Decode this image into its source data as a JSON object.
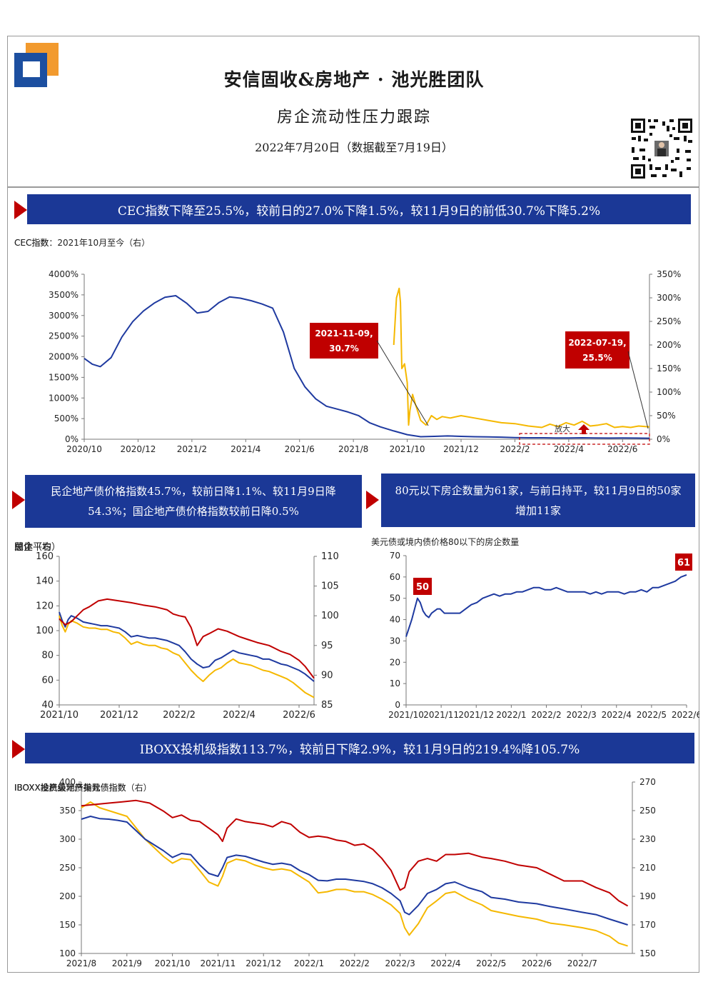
{
  "header": {
    "title": "安信固收&房地产 · 池光胜团队",
    "subtitle": "房企流动性压力跟踪",
    "date": "2022年7月20日（数据截至7月19日）"
  },
  "banners": {
    "b1": "CEC指数下降至25.5%，较前日的27.0%下降1.5%，较11月9日的前低30.7%下降5.2%",
    "b2": "民企地产债价格指数45.7%，较前日降1.1%、较11月9日降54.3%；国企地产债价格指数较前日降0.5%",
    "b3": "80元以下房企数量为61家，与前日持平，较11月9日的50家增加11家",
    "b4": "IBOXX投机级指数113.7%，较前日下降2.9%，较11月9日的219.4%降105.7%"
  },
  "colors": {
    "navy": "#1b3896",
    "red": "#c00000",
    "gold": "#f5b800",
    "blue": "#1f3aa0"
  },
  "chart_data": [
    {
      "id": "cec",
      "type": "line",
      "legend": [
        "CEC指数",
        "CEC指数：2021年10月至今（右）"
      ],
      "y_ticks": [
        "4000%",
        "3500%",
        "3000%",
        "2500%",
        "2000%",
        "1500%",
        "1000%",
        "500%",
        "0%"
      ],
      "y2_ticks": [
        "350%",
        "300%",
        "250%",
        "200%",
        "150%",
        "100%",
        "50%",
        "0%"
      ],
      "x_ticks": [
        "2020/10",
        "2020/12",
        "2021/2",
        "2021/4",
        "2021/6",
        "2021/8",
        "2021/10",
        "2021/12",
        "2022/2",
        "2022/4",
        "2022/6"
      ],
      "ylim": [
        0,
        4000
      ],
      "y2lim": [
        0,
        350
      ],
      "series": [
        {
          "name": "CEC指数",
          "axis": "left",
          "x": [
            0,
            0.3,
            0.6,
            1.0,
            1.4,
            1.8,
            2.2,
            2.6,
            3.0,
            3.4,
            3.8,
            4.2,
            4.6,
            5.0,
            5.4,
            5.8,
            6.2,
            6.6,
            7.0,
            7.4,
            7.8,
            8.2,
            8.6,
            9.0,
            9.4,
            9.8,
            10.2,
            10.6,
            11.0,
            11.5,
            12.0,
            12.5,
            13.0,
            13.5,
            14.0,
            14.5,
            15.0,
            15.5,
            16.0,
            16.5,
            17.0,
            17.5,
            18.0,
            18.5,
            19.0,
            19.5,
            20.0,
            20.5,
            21.0
          ],
          "y": [
            1960,
            1820,
            1760,
            1980,
            2480,
            2850,
            3110,
            3300,
            3440,
            3480,
            3300,
            3060,
            3100,
            3310,
            3450,
            3420,
            3360,
            3280,
            3180,
            2600,
            1720,
            1270,
            980,
            800,
            730,
            660,
            570,
            400,
            300,
            200,
            110,
            60,
            70,
            80,
            70,
            60,
            55,
            50,
            40,
            35,
            35,
            30,
            30,
            35,
            30,
            28,
            30,
            27,
            25
          ]
        },
        {
          "name": "CEC指数：2021年10月至今（右）",
          "axis": "right",
          "x": [
            11.5,
            11.6,
            11.7,
            11.75,
            11.8,
            11.9,
            12.0,
            12.05,
            12.1,
            12.2,
            12.3,
            12.5,
            12.7,
            12.9,
            13.1,
            13.3,
            13.6,
            14.0,
            14.5,
            15.0,
            15.5,
            16.0,
            16.5,
            17.0,
            17.3,
            17.6,
            17.9,
            18.2,
            18.5,
            18.8,
            19.1,
            19.4,
            19.7,
            20.0,
            20.3,
            20.6,
            21.0
          ],
          "y": [
            200,
            300,
            320,
            290,
            150,
            160,
            120,
            30,
            60,
            95,
            75,
            40,
            30,
            50,
            42,
            48,
            45,
            50,
            45,
            40,
            35,
            33,
            28,
            25,
            32,
            27,
            35,
            30,
            38,
            28,
            30,
            33,
            25,
            27,
            25,
            28,
            26
          ]
        }
      ],
      "annotations": [
        {
          "label": "2021-11-09, 30.7%"
        },
        {
          "label": "2022-07-19, 25.5%"
        },
        {
          "label": "放大"
        }
      ]
    },
    {
      "id": "bond_price",
      "type": "line",
      "legend": [
        "总体平均",
        "民企",
        "国企（右）"
      ],
      "y_ticks": [
        "160",
        "140",
        "120",
        "100",
        "80",
        "60",
        "40"
      ],
      "y2_ticks": [
        "110",
        "105",
        "100",
        "95",
        "90",
        "85"
      ],
      "x_ticks": [
        "2021/10",
        "2021/12",
        "2022/2",
        "2022/4",
        "2022/6"
      ],
      "ylim": [
        40,
        160
      ],
      "y2lim": [
        85,
        110
      ],
      "series": [
        {
          "name": "总体平均",
          "axis": "left",
          "x": [
            0,
            0.1,
            0.2,
            0.3,
            0.4,
            0.6,
            0.8,
            1.0,
            1.2,
            1.4,
            1.6,
            1.8,
            2.0,
            2.2,
            2.4,
            2.6,
            2.8,
            3.0,
            3.2,
            3.4,
            3.6,
            3.8,
            4.0,
            4.2,
            4.4,
            4.6,
            4.8,
            5.0,
            5.2,
            5.4,
            5.6,
            5.8,
            6.0,
            6.2,
            6.4,
            6.6,
            6.8,
            7.0,
            7.2,
            7.4,
            7.6,
            7.8,
            8.0,
            8.2,
            8.5
          ],
          "y": [
            115,
            108,
            103,
            109,
            112,
            110,
            107,
            106,
            105,
            104,
            104,
            103,
            102,
            99,
            95,
            96,
            95,
            94,
            94,
            93,
            92,
            90,
            88,
            83,
            77,
            73,
            70,
            71,
            76,
            78,
            81,
            84,
            82,
            81,
            80,
            79,
            77,
            77,
            75,
            73,
            72,
            70,
            68,
            65,
            59
          ]
        },
        {
          "name": "民企",
          "axis": "left",
          "x": [
            0,
            0.1,
            0.2,
            0.3,
            0.4,
            0.6,
            0.8,
            1.0,
            1.2,
            1.4,
            1.6,
            1.8,
            2.0,
            2.2,
            2.4,
            2.6,
            2.8,
            3.0,
            3.2,
            3.4,
            3.6,
            3.8,
            4.0,
            4.2,
            4.4,
            4.6,
            4.8,
            5.0,
            5.2,
            5.4,
            5.6,
            5.8,
            6.0,
            6.2,
            6.4,
            6.6,
            6.8,
            7.0,
            7.2,
            7.4,
            7.6,
            7.8,
            8.0,
            8.2,
            8.5
          ],
          "y": [
            112,
            104,
            99,
            105,
            108,
            106,
            103,
            102,
            102,
            101,
            101,
            99,
            98,
            94,
            89,
            91,
            89,
            88,
            88,
            86,
            85,
            82,
            80,
            74,
            68,
            63,
            59,
            64,
            68,
            70,
            74,
            77,
            74,
            73,
            72,
            70,
            68,
            67,
            65,
            63,
            61,
            58,
            54,
            50,
            46
          ]
        },
        {
          "name": "国企（右）",
          "axis": "right",
          "x": [
            0,
            0.2,
            0.4,
            0.6,
            0.8,
            1.0,
            1.3,
            1.6,
            2.0,
            2.4,
            2.8,
            3.2,
            3.6,
            3.8,
            4.0,
            4.2,
            4.4,
            4.6,
            4.8,
            5.0,
            5.3,
            5.6,
            6.0,
            6.3,
            6.6,
            7.0,
            7.4,
            7.7,
            8.0,
            8.2,
            8.5
          ],
          "y": [
            99.5,
            98.5,
            99,
            100,
            101,
            101.5,
            102.5,
            102.8,
            102.5,
            102.2,
            101.8,
            101.5,
            101,
            100.3,
            100,
            99.8,
            98,
            95,
            96.5,
            97,
            97.8,
            97.4,
            96.5,
            96,
            95.5,
            95,
            94,
            93.5,
            92.5,
            91.5,
            89.5
          ]
        }
      ]
    },
    {
      "id": "below80",
      "type": "line",
      "legend": [
        "美元债或境内债价格80以下的房企数量"
      ],
      "y_ticks": [
        "70",
        "60",
        "50",
        "40",
        "30",
        "20",
        "10",
        "0"
      ],
      "x_ticks": [
        "2021/10",
        "2021/11",
        "2021/12",
        "2022/1",
        "2022/2",
        "2022/3",
        "2022/4",
        "2022/5",
        "2022/6"
      ],
      "ylim": [
        0,
        70
      ],
      "series": [
        {
          "name": "美元债或境内债价格80以下的房企数量",
          "x": [
            0,
            0.1,
            0.2,
            0.3,
            0.4,
            0.5,
            0.6,
            0.7,
            0.8,
            0.9,
            1.0,
            1.1,
            1.2,
            1.35,
            1.5,
            1.7,
            1.9,
            2.0,
            2.1,
            2.3,
            2.5,
            2.7,
            2.9,
            3.1,
            3.3,
            3.5,
            3.7,
            3.9,
            4.1,
            4.3,
            4.5,
            4.7,
            4.9,
            5.1,
            5.3,
            5.5,
            5.7,
            5.9,
            6.1,
            6.3,
            6.5,
            6.7,
            6.9,
            7.1,
            7.3,
            7.5,
            7.7,
            7.9,
            8.1,
            8.3,
            8.5,
            8.7,
            8.9,
            9.1,
            9.3,
            9.5,
            9.7,
            9.9
          ],
          "y": [
            32,
            36,
            40,
            45,
            50,
            48,
            44,
            42,
            41,
            43,
            44,
            45,
            45,
            43,
            43,
            43,
            43,
            44,
            45,
            47,
            48,
            50,
            51,
            52,
            51,
            52,
            52,
            53,
            53,
            54,
            55,
            55,
            54,
            54,
            55,
            54,
            53,
            53,
            53,
            53,
            52,
            53,
            52,
            53,
            53,
            53,
            52,
            53,
            53,
            54,
            53,
            55,
            55,
            56,
            57,
            58,
            60,
            61
          ]
        }
      ],
      "annotations": [
        {
          "label": "50"
        },
        {
          "label": "61"
        }
      ]
    },
    {
      "id": "iboxx",
      "type": "line",
      "legend": [
        "IBOXX投机级地产美元债指数",
        "IBOXX地产美元债指数",
        "IBOXX投资级地产美元债指数（右）"
      ],
      "y_ticks": [
        "400",
        "350",
        "300",
        "250",
        "200",
        "150",
        "100"
      ],
      "y2_ticks": [
        "270",
        "250",
        "230",
        "210",
        "190",
        "170",
        "150"
      ],
      "x_ticks": [
        "2021/8",
        "2021/9",
        "2021/10",
        "2021/11",
        "2021/12",
        "2022/1",
        "2022/2",
        "2022/3",
        "2022/4",
        "2022/5",
        "2022/6",
        "2022/7"
      ],
      "ylim": [
        100,
        400
      ],
      "y2lim": [
        150,
        280
      ],
      "series": [
        {
          "name": "IBOXX投机级地产美元债指数",
          "axis": "left",
          "x": [
            0,
            0.2,
            0.4,
            0.6,
            0.8,
            1.0,
            1.2,
            1.4,
            1.6,
            1.8,
            2.0,
            2.2,
            2.4,
            2.6,
            2.8,
            3.0,
            3.1,
            3.2,
            3.4,
            3.6,
            3.8,
            4.0,
            4.2,
            4.4,
            4.6,
            4.8,
            5.0,
            5.2,
            5.4,
            5.6,
            5.8,
            6.0,
            6.2,
            6.4,
            6.6,
            6.8,
            7.0,
            7.1,
            7.2,
            7.4,
            7.6,
            7.8,
            8.0,
            8.2,
            8.5,
            8.8,
            9.0,
            9.3,
            9.6,
            10.0,
            10.3,
            10.6,
            11.0,
            11.3,
            11.6,
            11.8,
            12.0
          ],
          "y": [
            355,
            365,
            355,
            350,
            345,
            340,
            320,
            300,
            285,
            270,
            258,
            266,
            264,
            245,
            225,
            218,
            235,
            258,
            265,
            262,
            255,
            250,
            246,
            248,
            245,
            235,
            225,
            206,
            208,
            212,
            212,
            208,
            208,
            203,
            195,
            185,
            170,
            145,
            132,
            152,
            180,
            192,
            205,
            208,
            195,
            185,
            175,
            170,
            165,
            160,
            153,
            150,
            145,
            140,
            130,
            118,
            113
          ]
        },
        {
          "name": "IBOXX地产美元债指数",
          "axis": "left",
          "x": [
            0,
            0.2,
            0.4,
            0.6,
            0.8,
            1.0,
            1.2,
            1.4,
            1.6,
            1.8,
            2.0,
            2.2,
            2.4,
            2.6,
            2.8,
            3.0,
            3.1,
            3.2,
            3.4,
            3.6,
            3.8,
            4.0,
            4.2,
            4.4,
            4.6,
            4.8,
            5.0,
            5.2,
            5.4,
            5.6,
            5.8,
            6.0,
            6.2,
            6.4,
            6.6,
            6.8,
            7.0,
            7.1,
            7.2,
            7.4,
            7.6,
            7.8,
            8.0,
            8.2,
            8.5,
            8.8,
            9.0,
            9.3,
            9.6,
            10.0,
            10.3,
            10.6,
            11.0,
            11.3,
            11.6,
            11.8,
            12.0
          ],
          "y": [
            335,
            340,
            336,
            335,
            333,
            330,
            315,
            300,
            290,
            280,
            268,
            275,
            273,
            255,
            240,
            235,
            250,
            268,
            272,
            270,
            265,
            260,
            256,
            258,
            255,
            245,
            238,
            228,
            227,
            230,
            230,
            228,
            226,
            222,
            215,
            205,
            192,
            172,
            168,
            184,
            205,
            212,
            222,
            225,
            215,
            208,
            198,
            195,
            190,
            187,
            182,
            178,
            172,
            168,
            160,
            155,
            150
          ]
        },
        {
          "name": "IBOXX投资级地产美元债指数（右）",
          "axis": "right",
          "x": [
            0,
            0.3,
            0.6,
            0.9,
            1.2,
            1.5,
            1.8,
            2.0,
            2.2,
            2.4,
            2.6,
            2.8,
            3.0,
            3.1,
            3.2,
            3.4,
            3.6,
            3.8,
            4.0,
            4.2,
            4.4,
            4.6,
            4.8,
            5.0,
            5.2,
            5.4,
            5.6,
            5.8,
            6.0,
            6.2,
            6.4,
            6.6,
            6.8,
            7.0,
            7.1,
            7.2,
            7.4,
            7.6,
            7.8,
            8.0,
            8.2,
            8.5,
            8.8,
            9.0,
            9.3,
            9.6,
            10.0,
            10.3,
            10.6,
            11.0,
            11.3,
            11.6,
            11.8,
            12.0
          ],
          "y": [
            262,
            263,
            264,
            265,
            266,
            264,
            258,
            253,
            255,
            251,
            250,
            245,
            240,
            235,
            245,
            252,
            250,
            249,
            248,
            246,
            250,
            248,
            242,
            238,
            239,
            238,
            236,
            235,
            232,
            233,
            229,
            222,
            213,
            198,
            200,
            212,
            220,
            222,
            220,
            225,
            225,
            226,
            223,
            222,
            220,
            217,
            215,
            210,
            205,
            205,
            200,
            196,
            190,
            186
          ]
        }
      ]
    }
  ]
}
